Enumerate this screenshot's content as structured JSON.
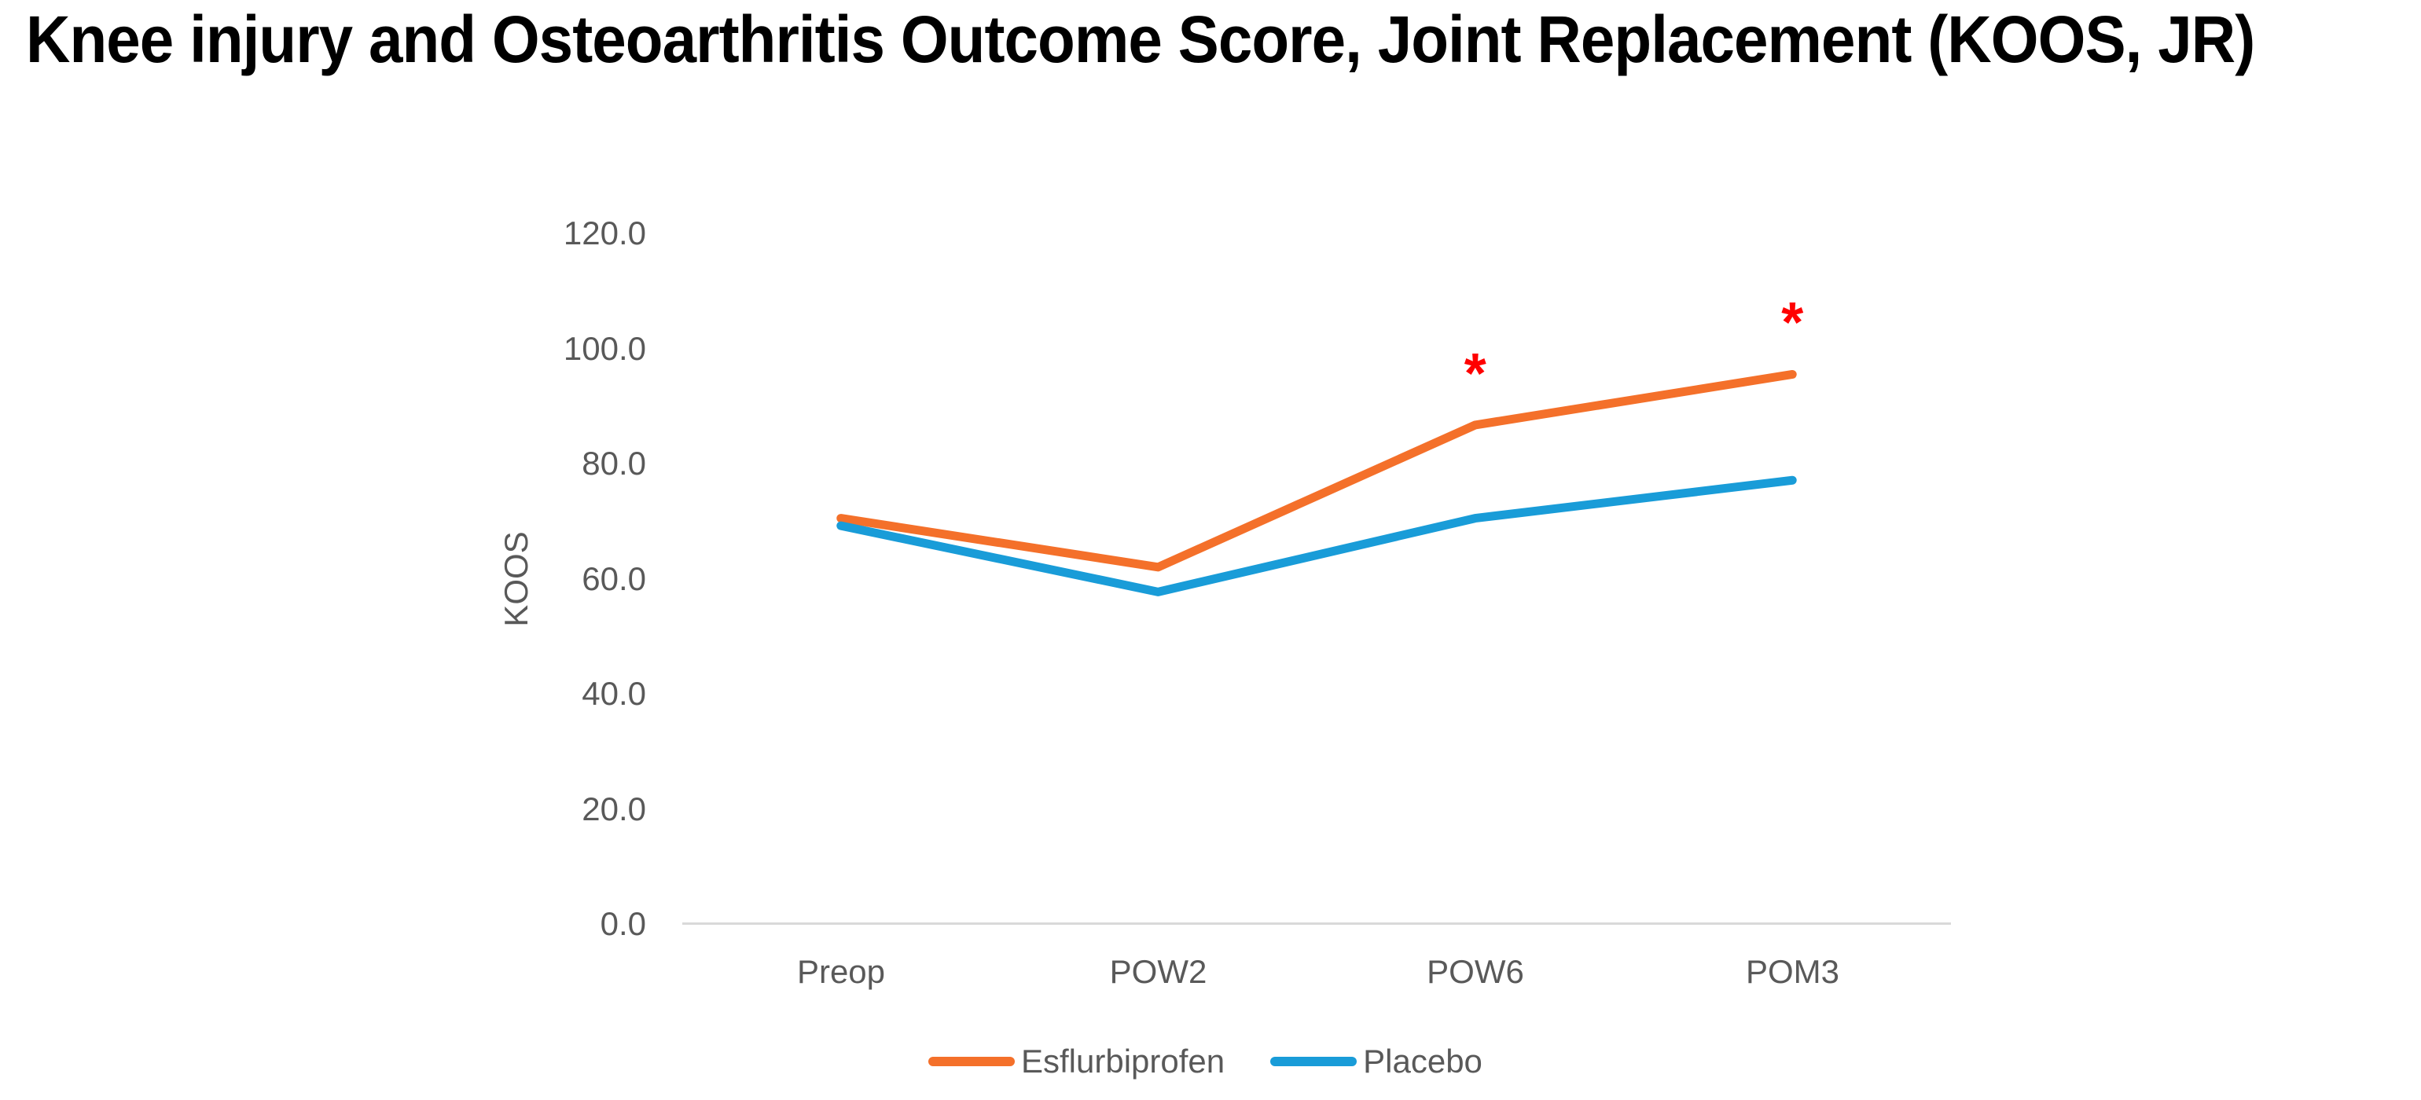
{
  "title": "Knee injury and Osteoarthritis Outcome Score, Joint Replacement (KOOS, JR)",
  "chart_data": {
    "type": "line",
    "title": "Knee injury and Osteoarthritis Outcome Score, Joint Replacement (KOOS, JR)",
    "xlabel": "",
    "ylabel": "KOOS",
    "categories": [
      "Preop",
      "POW2",
      "POW6",
      "POM3"
    ],
    "series": [
      {
        "name": "Esflurbiprofen",
        "color": "#F4702A",
        "values": [
          70.5,
          62.0,
          86.7,
          95.5
        ]
      },
      {
        "name": "Placebo",
        "color": "#199CD8",
        "values": [
          69.2,
          57.7,
          70.5,
          77.1
        ]
      }
    ],
    "annotations": [
      {
        "text": "*",
        "category": "POW6",
        "series": "Esflurbiprofen",
        "color": "#FF0000",
        "meaning": "significant difference marker"
      },
      {
        "text": "*",
        "category": "POM3",
        "series": "Esflurbiprofen",
        "color": "#FF0000",
        "meaning": "significant difference marker"
      }
    ],
    "ylim": [
      0,
      120
    ],
    "ytick_step": 20,
    "ytick_labels": [
      "0.0",
      "20.0",
      "40.0",
      "60.0",
      "80.0",
      "100.0",
      "120.0"
    ],
    "grid": false,
    "legend_position": "bottom",
    "axis_line_color": "#D9D9D9",
    "label_color": "#595959"
  }
}
